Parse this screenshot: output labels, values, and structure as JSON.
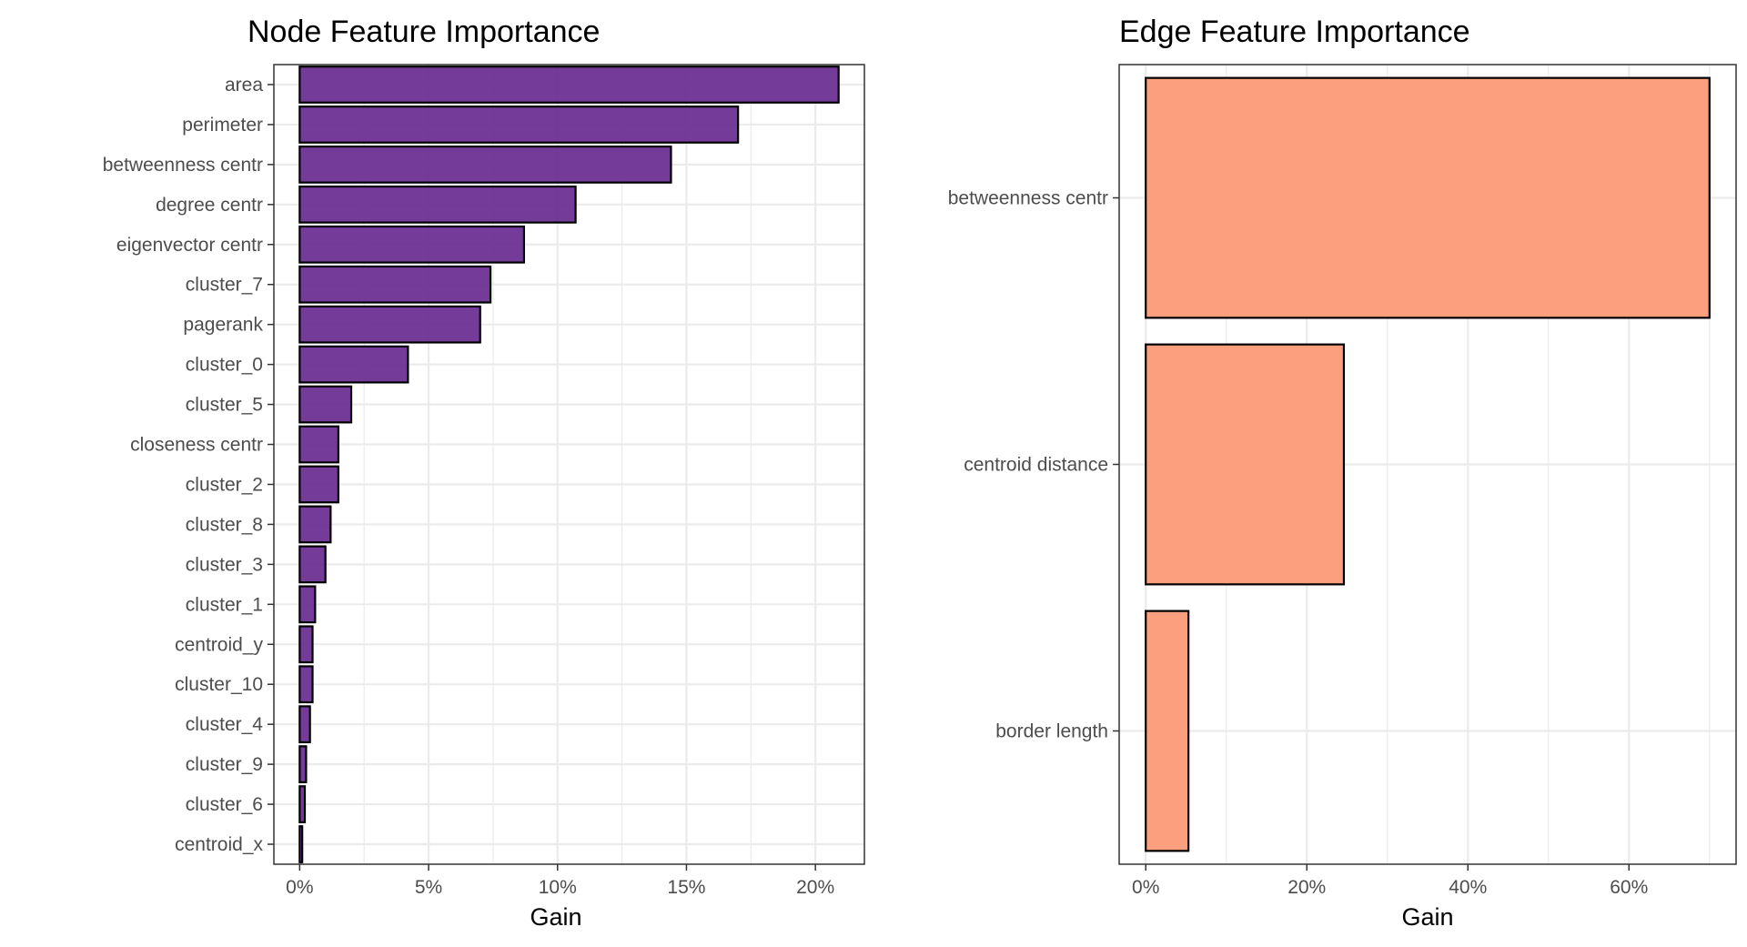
{
  "chart_data": [
    {
      "type": "bar",
      "orientation": "horizontal",
      "title": "Node Feature Importance",
      "xlabel": "Gain",
      "ylabel": "",
      "categories": [
        "area",
        "perimeter",
        "betweenness centr",
        "degree centr",
        "eigenvector centr",
        "cluster_7",
        "pagerank",
        "cluster_0",
        "cluster_5",
        "closeness centr",
        "cluster_2",
        "cluster_8",
        "cluster_3",
        "cluster_1",
        "centroid_y",
        "cluster_10",
        "cluster_4",
        "cluster_9",
        "cluster_6",
        "centroid_x"
      ],
      "values": [
        20.9,
        17.0,
        14.4,
        10.7,
        8.7,
        7.4,
        7.0,
        4.2,
        2.0,
        1.5,
        1.5,
        1.2,
        1.0,
        0.6,
        0.5,
        0.5,
        0.4,
        0.25,
        0.2,
        0.1
      ],
      "xlim": [
        -1.0,
        21.9
      ],
      "xticks": [
        0,
        5,
        10,
        15,
        20
      ],
      "xtick_labels": [
        "0%",
        "5%",
        "10%",
        "15%",
        "20%"
      ],
      "grid": true,
      "fill_color": "#6a2c91",
      "edge_color": "#000000"
    },
    {
      "type": "bar",
      "orientation": "horizontal",
      "title": "Edge Feature Importance",
      "xlabel": "Gain",
      "ylabel": "",
      "categories": [
        "betweenness centr",
        "centroid distance",
        "border length"
      ],
      "values": [
        70.0,
        24.6,
        5.3
      ],
      "xlim": [
        -3.3,
        73.3
      ],
      "xticks": [
        0,
        20,
        40,
        60
      ],
      "xtick_labels": [
        "0%",
        "20%",
        "40%",
        "60%"
      ],
      "grid": true,
      "fill_color": "#fc9f7f",
      "edge_color": "#000000"
    }
  ]
}
